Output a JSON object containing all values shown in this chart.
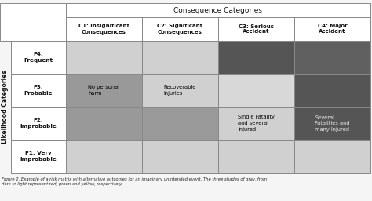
{
  "title": "Consequence Categories",
  "col_headers": [
    "C1: Insignificant\nConsequences",
    "C2: Significant\nConsequences",
    "C3: Serious\nAccident",
    "C4: Major\nAccident"
  ],
  "row_headers": [
    "F4:\nFrequent",
    "F3:\nProbable",
    "F2:\nImprobable",
    "F1: Very\nImprobable"
  ],
  "ylabel": "Likelihood Categories",
  "cell_colors": [
    [
      "#d0d0d0",
      "#d0d0d0",
      "#555555",
      "#606060"
    ],
    [
      "#999999",
      "#d0d0d0",
      "#d8d8d8",
      "#555555"
    ],
    [
      "#999999",
      "#9a9a9a",
      "#d0d0d0",
      "#555555"
    ],
    [
      "#d0d0d0",
      "#d0d0d0",
      "#d0d0d0",
      "#d0d0d0"
    ]
  ],
  "cell_texts": [
    [
      "",
      "",
      "",
      ""
    ],
    [
      "No personal\nharm",
      "Recoverable\nInjuries",
      "",
      ""
    ],
    [
      "",
      "",
      "Single Fatality\nand several\nInjured",
      "Several\nFatalities and\nmany Injured"
    ],
    [
      "",
      "",
      "",
      ""
    ]
  ],
  "cell_text_colors": [
    [
      "#000000",
      "#000000",
      "#000000",
      "#000000"
    ],
    [
      "#000000",
      "#000000",
      "#000000",
      "#000000"
    ],
    [
      "#000000",
      "#000000",
      "#000000",
      "#e8e8e8"
    ],
    [
      "#000000",
      "#000000",
      "#000000",
      "#000000"
    ]
  ],
  "caption": "Figure 2. Example of a risk matrix with alternative outcomes for an imaginary unintended event. The three shades of gray, from\ndark to light represent red, green and yellow, respectively.",
  "background_color": "#f5f5f5",
  "header_bg": "#ffffff",
  "border_color": "#888888",
  "figsize": [
    4.74,
    2.56
  ],
  "dpi": 100
}
